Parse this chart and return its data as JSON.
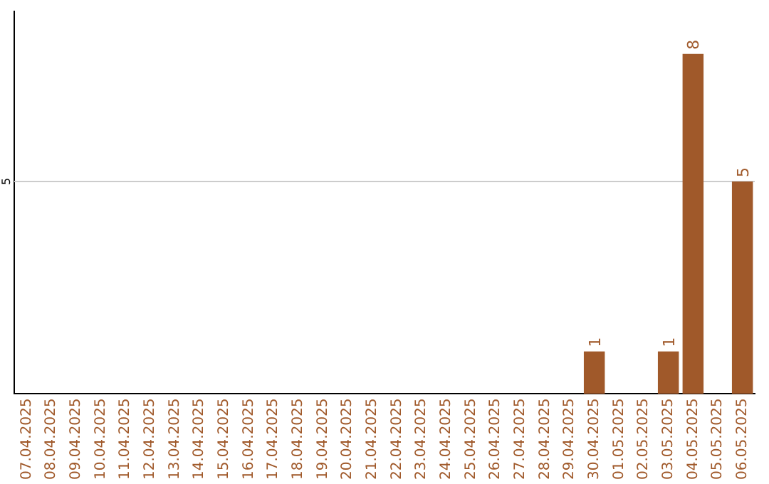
{
  "chart_data": {
    "type": "bar",
    "categories": [
      "07.04.2025",
      "08.04.2025",
      "09.04.2025",
      "10.04.2025",
      "11.04.2025",
      "12.04.2025",
      "13.04.2025",
      "14.04.2025",
      "15.04.2025",
      "16.04.2025",
      "17.04.2025",
      "18.04.2025",
      "19.04.2025",
      "20.04.2025",
      "21.04.2025",
      "22.04.2025",
      "23.04.2025",
      "24.04.2025",
      "25.04.2025",
      "26.04.2025",
      "27.04.2025",
      "28.04.2025",
      "29.04.2025",
      "30.04.2025",
      "01.05.2025",
      "02.05.2025",
      "03.05.2025",
      "04.05.2025",
      "05.05.2025",
      "06.05.2025"
    ],
    "values": [
      null,
      null,
      null,
      null,
      null,
      null,
      null,
      null,
      null,
      null,
      null,
      null,
      null,
      null,
      null,
      null,
      null,
      null,
      null,
      null,
      null,
      null,
      null,
      1,
      null,
      null,
      1,
      8,
      null,
      5
    ],
    "data_labels": true,
    "color": "#a0592a",
    "ref_lines": [
      {
        "axis": "y",
        "value": 5,
        "label": "5",
        "color": "#cccccc"
      }
    ],
    "legend": false
  }
}
